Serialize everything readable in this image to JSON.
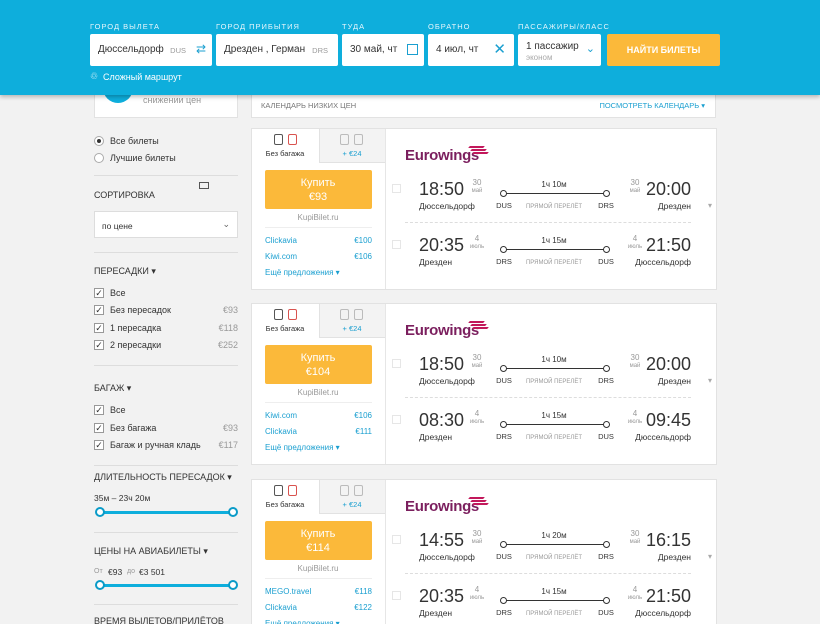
{
  "header": {
    "fields": [
      {
        "label": "ГОРОД ВЫЛЕТА",
        "value": "Дюссельдорф",
        "code": "DUS"
      },
      {
        "label": "ГОРОД ПРИБЫТИЯ",
        "value": "Дрезден , Герман",
        "code": "DRS"
      },
      {
        "label": "ТУДА",
        "value": "30 май, чт"
      },
      {
        "label": "ОБРАТНО",
        "value": "4 июл, чт"
      },
      {
        "label": "ПАССАЖИРЫ/КЛАСС",
        "value": "1 пассажир",
        "sub": "эконом"
      }
    ],
    "search_button": "НАЙТИ БИЛЕТЫ",
    "complex_route": "Сложный маршрут"
  },
  "price_alert": "снижении цен",
  "calendar": {
    "title": "КАЛЕНДАРЬ НИЗКИХ ЦЕН",
    "link": "ПОСМОТРЕТЬ КАЛЕНДАРЬ"
  },
  "sidebar": {
    "view": [
      {
        "label": "Все билеты",
        "checked": true
      },
      {
        "label": "Лучшие билеты",
        "checked": false
      }
    ],
    "sort": {
      "title": "СОРТИРОВКА",
      "value": "по цене"
    },
    "filters": [
      {
        "title": "ПЕРЕСАДКИ",
        "options": [
          {
            "label": "Все"
          },
          {
            "label": "Без пересадок",
            "price": "€93"
          },
          {
            "label": "1 пересадка",
            "price": "€118"
          },
          {
            "label": "2 пересадки",
            "price": "€252"
          }
        ]
      },
      {
        "title": "БАГАЖ",
        "options": [
          {
            "label": "Все"
          },
          {
            "label": "Без багажа",
            "price": "€93"
          },
          {
            "label": "Багаж и ручная кладь",
            "price": "€117"
          }
        ]
      }
    ],
    "duration": {
      "title": "ДЛИТЕЛЬНОСТЬ ПЕРЕСАДОК",
      "text": "35м – 23ч 20м"
    },
    "prices": {
      "title": "ЦЕНЫ НА АВИАБИЛЕТЫ",
      "from_label": "От",
      "from": "€93",
      "to_label": "до",
      "to": "€3 501"
    },
    "last_section": "ВРЕМЯ ВЫЛЕТОВ/ПРИЛЁТОВ"
  },
  "tickets": [
    {
      "baggage_tab": "Без багажа",
      "extra_tab": "+ €24",
      "buy": "Купить",
      "price": "€93",
      "seller": "KupiBilet.ru",
      "offers": [
        {
          "name": "Clickavia",
          "price": "€100"
        },
        {
          "name": "Kiwi.com",
          "price": "€106"
        }
      ],
      "more": "Ещё предложения",
      "airline": "Eurowings",
      "legs": [
        {
          "dep_time": "18:50",
          "dep_day": "30",
          "dep_month": "май",
          "dep_city": "Дюссельдорф",
          "duration": "1ч 10м",
          "from": "DUS",
          "type": "ПРЯМОЙ ПЕРЕЛЁТ",
          "to": "DRS",
          "arr_day": "30",
          "arr_month": "май",
          "arr_time": "20:00",
          "arr_city": "Дрезден"
        },
        {
          "dep_time": "20:35",
          "dep_day": "4",
          "dep_month": "июль",
          "dep_city": "Дрезден",
          "duration": "1ч 15м",
          "from": "DRS",
          "type": "ПРЯМОЙ ПЕРЕЛЁТ",
          "to": "DUS",
          "arr_day": "4",
          "arr_month": "июль",
          "arr_time": "21:50",
          "arr_city": "Дюссельдорф"
        }
      ]
    },
    {
      "baggage_tab": "Без багажа",
      "extra_tab": "+ €24",
      "buy": "Купить",
      "price": "€104",
      "seller": "KupiBilet.ru",
      "offers": [
        {
          "name": "Kiwi.com",
          "price": "€106"
        },
        {
          "name": "Clickavia",
          "price": "€111"
        }
      ],
      "more": "Ещё предложения",
      "airline": "Eurowings",
      "legs": [
        {
          "dep_time": "18:50",
          "dep_day": "30",
          "dep_month": "май",
          "dep_city": "Дюссельдорф",
          "duration": "1ч 10м",
          "from": "DUS",
          "type": "ПРЯМОЙ ПЕРЕЛЁТ",
          "to": "DRS",
          "arr_day": "30",
          "arr_month": "май",
          "arr_time": "20:00",
          "arr_city": "Дрезден"
        },
        {
          "dep_time": "08:30",
          "dep_day": "4",
          "dep_month": "июль",
          "dep_city": "Дрезден",
          "duration": "1ч 15м",
          "from": "DRS",
          "type": "ПРЯМОЙ ПЕРЕЛЁТ",
          "to": "DUS",
          "arr_day": "4",
          "arr_month": "июль",
          "arr_time": "09:45",
          "arr_city": "Дюссельдорф"
        }
      ]
    },
    {
      "baggage_tab": "Без багажа",
      "extra_tab": "+ €24",
      "buy": "Купить",
      "price": "€114",
      "seller": "KupiBilet.ru",
      "offers": [
        {
          "name": "MEGO.travel",
          "price": "€118"
        },
        {
          "name": "Clickavia",
          "price": "€122"
        }
      ],
      "more": "Ещё предложения",
      "airline": "Eurowings",
      "legs": [
        {
          "dep_time": "14:55",
          "dep_day": "30",
          "dep_month": "май",
          "dep_city": "Дюссельдорф",
          "duration": "1ч 20м",
          "from": "DUS",
          "type": "ПРЯМОЙ ПЕРЕЛЁТ",
          "to": "DRS",
          "arr_day": "30",
          "arr_month": "май",
          "arr_time": "16:15",
          "arr_city": "Дрезден"
        },
        {
          "dep_time": "20:35",
          "dep_day": "4",
          "dep_month": "июль",
          "dep_city": "Дрезден",
          "duration": "1ч 15м",
          "from": "DRS",
          "type": "ПРЯМОЙ ПЕРЕЛЁТ",
          "to": "DUS",
          "arr_day": "4",
          "arr_month": "июль",
          "arr_time": "21:50",
          "arr_city": "Дюссельдорф"
        }
      ]
    }
  ]
}
